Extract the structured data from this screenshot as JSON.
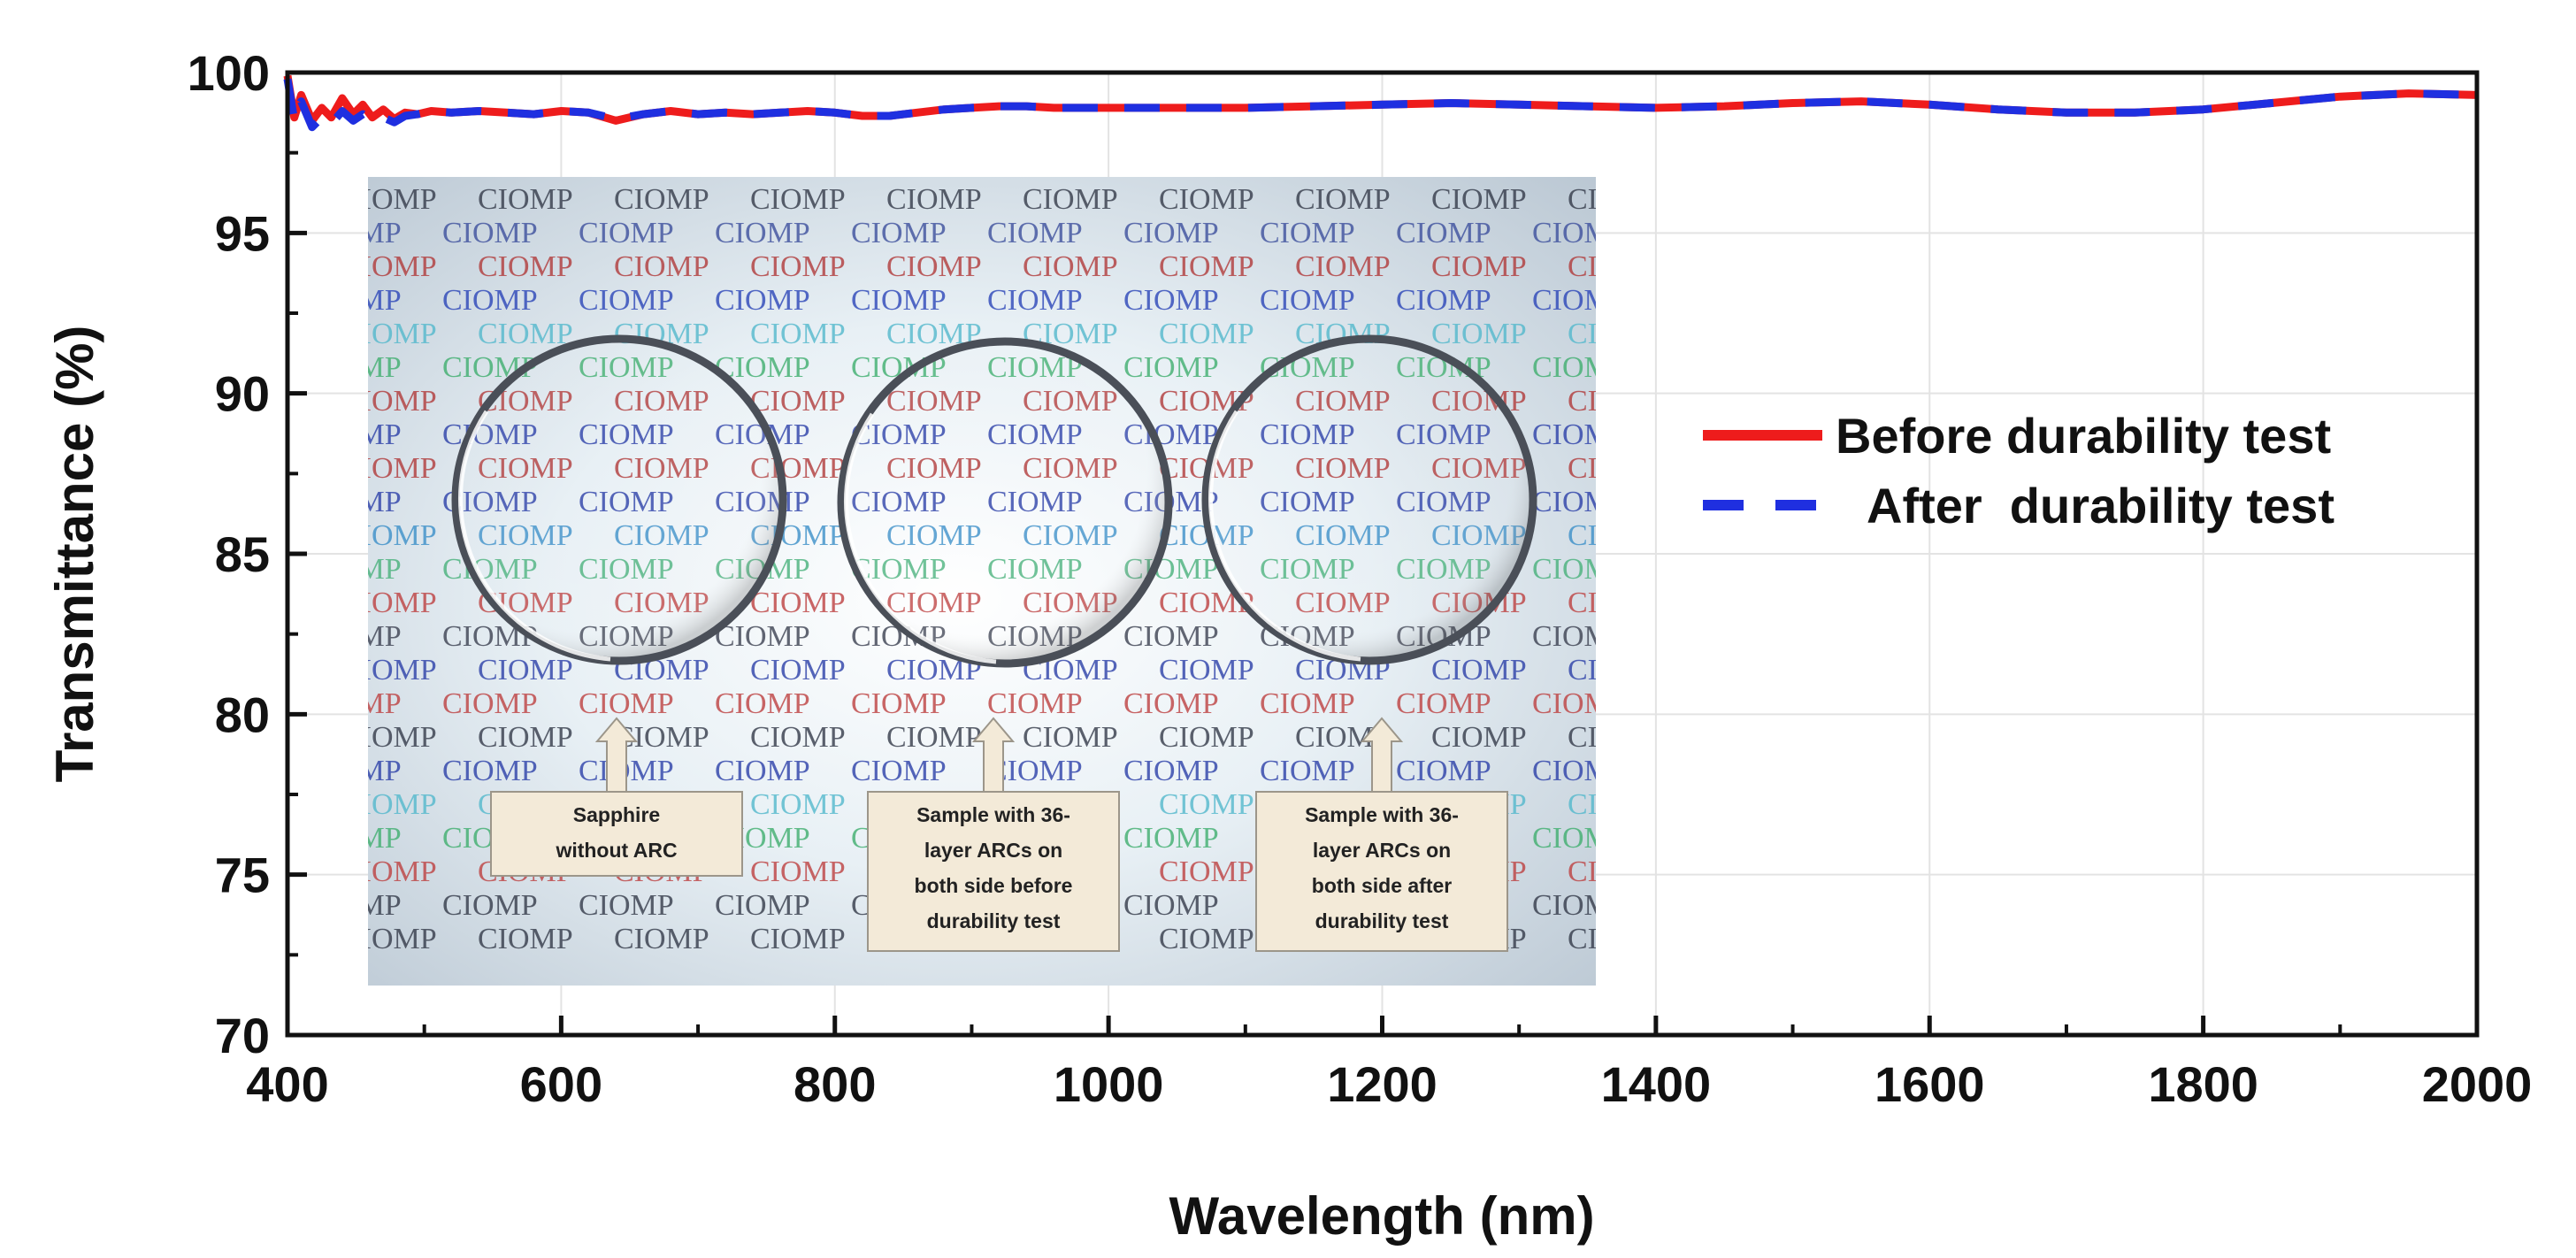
{
  "chart_data": {
    "type": "line",
    "title": "",
    "xlabel": "Wavelength (nm)",
    "ylabel": "Transmittance (%)",
    "xlim": [
      400,
      2000
    ],
    "ylim": [
      70,
      100
    ],
    "xticks": [
      400,
      600,
      800,
      1000,
      1200,
      1400,
      1600,
      1800,
      2000
    ],
    "yticks": [
      70,
      75,
      80,
      85,
      90,
      95,
      100
    ],
    "grid": true,
    "legend_position": "right",
    "series": [
      {
        "name": "Before durability test",
        "color": "#ee1c1c",
        "style": "solid",
        "x": [
          400,
          405,
          410,
          418,
          425,
          432,
          440,
          448,
          455,
          462,
          470,
          478,
          486,
          495,
          505,
          520,
          540,
          560,
          580,
          600,
          620,
          640,
          660,
          680,
          700,
          720,
          740,
          760,
          780,
          800,
          820,
          840,
          860,
          880,
          900,
          920,
          940,
          960,
          980,
          1000,
          1050,
          1100,
          1150,
          1200,
          1250,
          1300,
          1350,
          1400,
          1450,
          1500,
          1550,
          1600,
          1650,
          1700,
          1750,
          1800,
          1850,
          1900,
          1950,
          2000
        ],
        "y": [
          99.9,
          98.6,
          99.3,
          98.5,
          98.9,
          98.6,
          99.2,
          98.7,
          99.0,
          98.6,
          98.85,
          98.55,
          98.75,
          98.7,
          98.8,
          98.75,
          98.8,
          98.75,
          98.7,
          98.8,
          98.75,
          98.5,
          98.7,
          98.8,
          98.7,
          98.75,
          98.7,
          98.75,
          98.8,
          98.75,
          98.65,
          98.65,
          98.75,
          98.85,
          98.9,
          98.95,
          98.95,
          98.9,
          98.9,
          98.9,
          98.9,
          98.9,
          98.95,
          99.0,
          99.05,
          99.0,
          98.95,
          98.9,
          98.95,
          99.05,
          99.1,
          99.0,
          98.85,
          98.75,
          98.75,
          98.85,
          99.05,
          99.25,
          99.35,
          99.3
        ]
      },
      {
        "name": "After  durability test",
        "color": "#1f2fe0",
        "style": "dashed",
        "x": [
          400,
          405,
          410,
          418,
          425,
          432,
          440,
          448,
          455,
          462,
          470,
          478,
          486,
          495,
          505,
          520,
          540,
          560,
          580,
          600,
          620,
          640,
          660,
          680,
          700,
          720,
          740,
          760,
          780,
          800,
          820,
          840,
          860,
          880,
          900,
          920,
          940,
          960,
          980,
          1000,
          1050,
          1100,
          1150,
          1200,
          1250,
          1300,
          1350,
          1400,
          1450,
          1500,
          1550,
          1600,
          1650,
          1700,
          1750,
          1800,
          1850,
          1900,
          1950,
          2000
        ],
        "y": [
          99.8,
          98.5,
          99.1,
          98.3,
          98.6,
          98.4,
          98.8,
          98.5,
          98.7,
          98.5,
          98.6,
          98.45,
          98.65,
          98.7,
          98.8,
          98.75,
          98.8,
          98.75,
          98.7,
          98.8,
          98.75,
          98.55,
          98.7,
          98.8,
          98.7,
          98.75,
          98.7,
          98.75,
          98.8,
          98.75,
          98.65,
          98.65,
          98.75,
          98.85,
          98.9,
          98.95,
          98.95,
          98.9,
          98.9,
          98.9,
          98.9,
          98.9,
          98.95,
          99.0,
          99.05,
          99.0,
          98.95,
          98.9,
          98.95,
          99.05,
          99.1,
          99.0,
          98.85,
          98.75,
          98.75,
          98.85,
          99.05,
          99.25,
          99.35,
          99.3
        ]
      }
    ]
  },
  "inset": {
    "watermark_word": "CIOMP",
    "captions": [
      {
        "lines": [
          "Sapphire",
          "without ARC"
        ]
      },
      {
        "lines": [
          "Sample with 36-",
          "layer ARCs on",
          "both side before",
          "durability test"
        ]
      },
      {
        "lines": [
          "Sample with 36-",
          "layer ARCs on",
          "both side after",
          "durability test"
        ]
      }
    ]
  }
}
